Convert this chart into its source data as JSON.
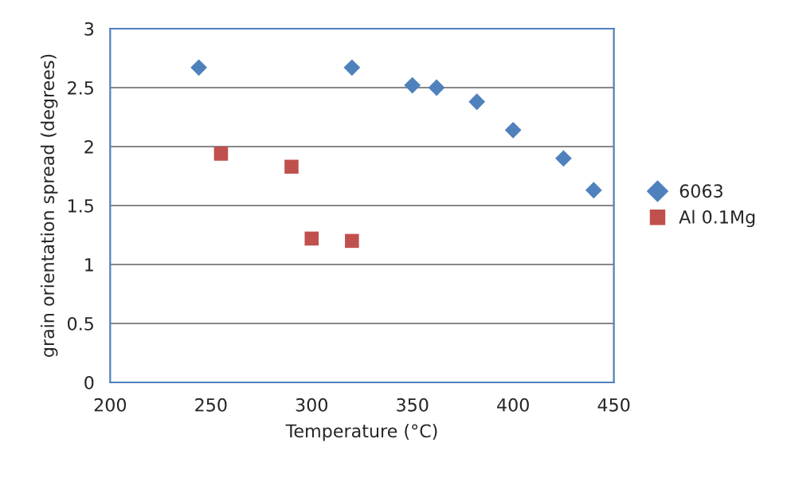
{
  "chart_data": {
    "type": "scatter",
    "xlabel": "Temperature (°C)",
    "ylabel": "grain orientation spread (degrees)",
    "xlim": [
      200,
      450
    ],
    "xticks": [
      200,
      250,
      300,
      350,
      400,
      450
    ],
    "ylim": [
      0,
      3
    ],
    "yticks": [
      0,
      0.5,
      1,
      1.5,
      2,
      2.5,
      3
    ],
    "grid": "y",
    "legend": "right",
    "series": [
      {
        "name": "6063",
        "color": "#4f81bd",
        "marker": "diamond",
        "x": [
          244,
          320,
          350,
          362,
          382,
          400,
          425,
          440
        ],
        "values": [
          2.67,
          2.67,
          2.52,
          2.5,
          2.38,
          2.14,
          1.9,
          1.63
        ]
      },
      {
        "name": "Al 0.1Mg",
        "color": "#c0504d",
        "marker": "square",
        "x": [
          255,
          290,
          300,
          320
        ],
        "values": [
          1.94,
          1.83,
          1.22,
          1.2
        ]
      }
    ]
  }
}
